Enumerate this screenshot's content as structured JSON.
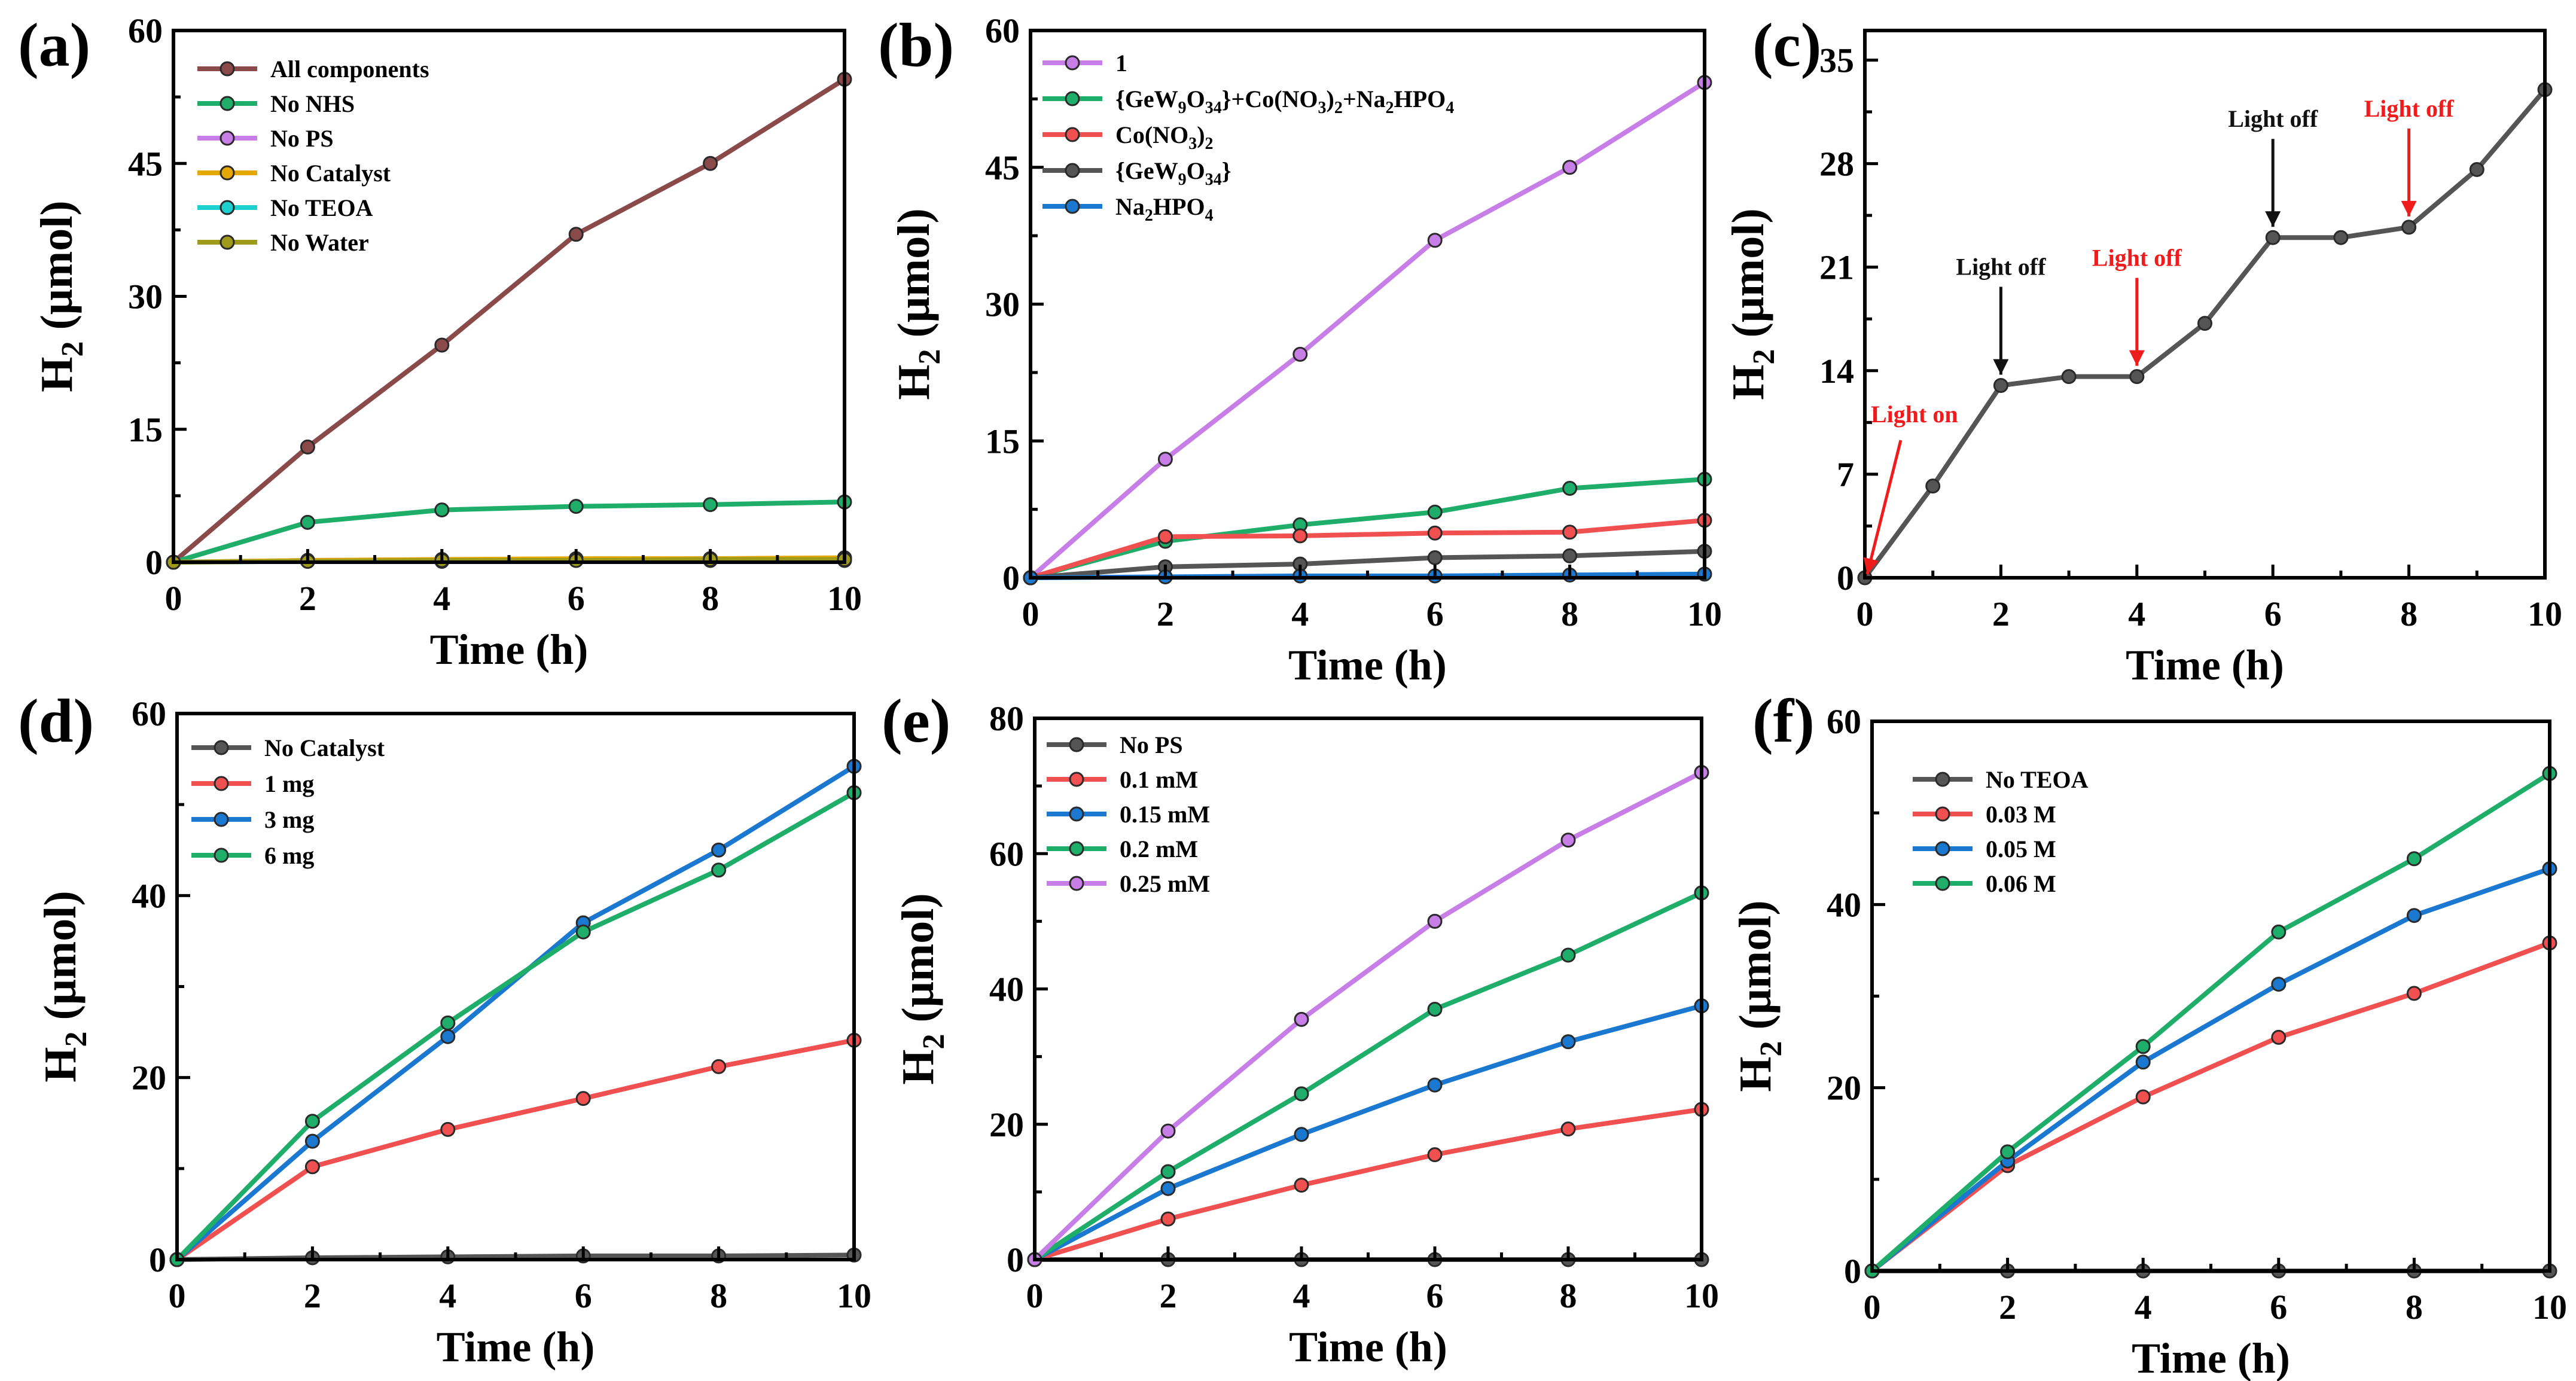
{
  "chart_data": [
    {
      "panel": "(a)",
      "type": "line",
      "xlabel": "Time (h)",
      "ylabel_main": "H",
      "ylabel_sub": "2",
      "ylabel_unit": " (μmol)",
      "xlim": [
        0,
        10
      ],
      "ylim": [
        0,
        60
      ],
      "xticks": [
        0,
        2,
        4,
        6,
        8,
        10
      ],
      "yticks": [
        0,
        15,
        30,
        45,
        60
      ],
      "legend_position": "top-left",
      "series": [
        {
          "name": "All components",
          "color": "#8b4a4a",
          "x": [
            0,
            2,
            4,
            6,
            8,
            10
          ],
          "y": [
            0,
            13,
            24.5,
            37,
            45,
            54.5
          ]
        },
        {
          "name": "No NHS",
          "color": "#1fae6a",
          "x": [
            0,
            2,
            4,
            6,
            8,
            10
          ],
          "y": [
            0,
            4.5,
            5.9,
            6.3,
            6.5,
            6.8
          ]
        },
        {
          "name": "No PS",
          "color": "#c77ee6",
          "x": [
            0,
            2,
            4,
            6,
            8,
            10
          ],
          "y": [
            0,
            0.2,
            0.3,
            0.3,
            0.4,
            0.4
          ]
        },
        {
          "name": "No Catalyst",
          "color": "#e5a800",
          "x": [
            0,
            2,
            4,
            6,
            8,
            10
          ],
          "y": [
            0,
            0.2,
            0.3,
            0.4,
            0.4,
            0.5
          ]
        },
        {
          "name": "No TEOA",
          "color": "#1fd0d0",
          "x": [
            0,
            2,
            4,
            6,
            8,
            10
          ],
          "y": [
            0,
            0.1,
            0.1,
            0.2,
            0.2,
            0.2
          ]
        },
        {
          "name": "No Water",
          "color": "#a09a1a",
          "x": [
            0,
            2,
            4,
            6,
            8,
            10
          ],
          "y": [
            0,
            0.1,
            0.2,
            0.2,
            0.3,
            0.3
          ]
        }
      ]
    },
    {
      "panel": "(b)",
      "type": "line",
      "xlabel": "Time (h)",
      "ylabel_main": "H",
      "ylabel_sub": "2",
      "ylabel_unit": " (μmol)",
      "xlim": [
        0,
        10
      ],
      "ylim": [
        0,
        60
      ],
      "xticks": [
        0,
        2,
        4,
        6,
        8,
        10
      ],
      "yticks": [
        0,
        15,
        30,
        45,
        60
      ],
      "legend_position": "top-left",
      "series": [
        {
          "name": "1",
          "legend_parts": [
            [
              "1",
              ""
            ]
          ],
          "color": "#c77ee6",
          "x": [
            0,
            2,
            4,
            6,
            8,
            10
          ],
          "y": [
            0,
            13,
            24.5,
            37,
            45,
            54.3
          ]
        },
        {
          "name": "{GeW9O34}+Co(NO3)2+Na2HPO4",
          "legend_parts": [
            [
              "{GeW",
              ""
            ],
            [
              "9",
              "sub"
            ],
            [
              "O",
              ""
            ],
            [
              "34",
              "sub"
            ],
            [
              "}+Co(NO",
              ""
            ],
            [
              "3",
              "sub"
            ],
            [
              ")",
              ""
            ],
            [
              "2",
              "sub"
            ],
            [
              "+Na",
              ""
            ],
            [
              "2",
              "sub"
            ],
            [
              "HPO",
              ""
            ],
            [
              "4",
              "sub"
            ]
          ],
          "color": "#1fae6a",
          "x": [
            0,
            2,
            4,
            6,
            8,
            10
          ],
          "y": [
            0,
            4,
            5.8,
            7.2,
            9.8,
            10.8
          ]
        },
        {
          "name": "Co(NO3)2",
          "legend_parts": [
            [
              "Co(NO",
              ""
            ],
            [
              "3",
              "sub"
            ],
            [
              ")",
              ""
            ],
            [
              "2",
              "sub"
            ]
          ],
          "color": "#f05050",
          "x": [
            0,
            2,
            4,
            6,
            8,
            10
          ],
          "y": [
            0,
            4.5,
            4.6,
            4.9,
            5,
            6.3
          ]
        },
        {
          "name": "{GeW9O34}",
          "legend_parts": [
            [
              "{GeW",
              ""
            ],
            [
              "9",
              "sub"
            ],
            [
              "O",
              ""
            ],
            [
              "34",
              "sub"
            ],
            [
              "}",
              ""
            ]
          ],
          "color": "#555555",
          "x": [
            0,
            2,
            4,
            6,
            8,
            10
          ],
          "y": [
            0,
            1.2,
            1.5,
            2.2,
            2.4,
            2.9
          ]
        },
        {
          "name": "Na2HPO4",
          "legend_parts": [
            [
              "Na",
              ""
            ],
            [
              "2",
              "sub"
            ],
            [
              "HPO",
              ""
            ],
            [
              "4",
              "sub"
            ]
          ],
          "color": "#1a78d0",
          "x": [
            0,
            2,
            4,
            6,
            8,
            10
          ],
          "y": [
            0,
            0.1,
            0.2,
            0.2,
            0.3,
            0.4
          ]
        }
      ]
    },
    {
      "panel": "(c)",
      "type": "line",
      "xlabel": "Time (h)",
      "ylabel_main": "H",
      "ylabel_sub": "2",
      "ylabel_unit": " (μmol)",
      "xlim": [
        0,
        10
      ],
      "ylim": [
        0,
        37
      ],
      "xticks": [
        0,
        2,
        4,
        6,
        8,
        10
      ],
      "yticks": [
        0,
        7,
        14,
        21,
        28,
        35
      ],
      "series": [
        {
          "name": "H2",
          "color": "#555555",
          "x": [
            0,
            1,
            2,
            3,
            4,
            5,
            6,
            7,
            8,
            9,
            10
          ],
          "y": [
            0,
            6.2,
            13,
            13.6,
            13.6,
            17.2,
            23,
            23,
            23.7,
            27.6,
            33
          ]
        }
      ],
      "annotations": [
        {
          "text": "Light on",
          "color": "#ee1c1c",
          "x": 0,
          "y": 0
        },
        {
          "text": "Light off",
          "color": "#111111",
          "x": 2,
          "y": 13
        },
        {
          "text": "Light off",
          "color": "#ee1c1c",
          "x": 4,
          "y": 13.6
        },
        {
          "text": "Light off",
          "color": "#111111",
          "x": 6,
          "y": 23
        },
        {
          "text": "Light off",
          "color": "#ee1c1c",
          "x": 8,
          "y": 23.7
        }
      ]
    },
    {
      "panel": "(d)",
      "type": "line",
      "xlabel": "Time (h)",
      "ylabel_main": "H",
      "ylabel_sub": "2",
      "ylabel_unit": " (μmol)",
      "xlim": [
        0,
        10
      ],
      "ylim": [
        0,
        60
      ],
      "xticks": [
        0,
        2,
        4,
        6,
        8,
        10
      ],
      "yticks": [
        0,
        20,
        40,
        60
      ],
      "legend_position": "top-left",
      "series": [
        {
          "name": "No Catalyst",
          "color": "#555555",
          "x": [
            0,
            2,
            4,
            6,
            8,
            10
          ],
          "y": [
            0,
            0.2,
            0.3,
            0.4,
            0.4,
            0.5
          ]
        },
        {
          "name": "1 mg",
          "color": "#f05050",
          "x": [
            0,
            2,
            4,
            6,
            8,
            10
          ],
          "y": [
            0,
            10.2,
            14.3,
            17.7,
            21.2,
            24.1
          ]
        },
        {
          "name": "3 mg",
          "color": "#1a78d0",
          "x": [
            0,
            2,
            4,
            6,
            8,
            10
          ],
          "y": [
            0,
            13,
            24.5,
            37,
            45,
            54.2
          ]
        },
        {
          "name": "6 mg",
          "color": "#1fae6a",
          "x": [
            0,
            2,
            4,
            6,
            8,
            10
          ],
          "y": [
            0,
            15.2,
            26,
            36,
            42.8,
            51.3
          ]
        }
      ]
    },
    {
      "panel": "(e)",
      "type": "line",
      "xlabel": "Time (h)",
      "ylabel_main": "H",
      "ylabel_sub": "2",
      "ylabel_unit": " (μmol)",
      "xlim": [
        0,
        10
      ],
      "ylim": [
        0,
        80
      ],
      "xticks": [
        0,
        2,
        4,
        6,
        8,
        10
      ],
      "yticks": [
        0,
        20,
        40,
        60,
        80
      ],
      "legend_position": "top-left",
      "series": [
        {
          "name": "No PS",
          "color": "#555555",
          "x": [
            0,
            2,
            4,
            6,
            8,
            10
          ],
          "y": [
            0,
            0,
            0,
            0,
            0,
            0
          ]
        },
        {
          "name": "0.1 mM",
          "color": "#f05050",
          "x": [
            0,
            2,
            4,
            6,
            8,
            10
          ],
          "y": [
            0,
            6,
            11,
            15.5,
            19.3,
            22.2
          ]
        },
        {
          "name": "0.15 mM",
          "color": "#1a78d0",
          "x": [
            0,
            2,
            4,
            6,
            8,
            10
          ],
          "y": [
            0,
            10.5,
            18.5,
            25.8,
            32.2,
            37.5
          ]
        },
        {
          "name": "0.2 mM",
          "color": "#1fae6a",
          "x": [
            0,
            2,
            4,
            6,
            8,
            10
          ],
          "y": [
            0,
            13,
            24.5,
            37,
            45,
            54.2
          ]
        },
        {
          "name": "0.25 mM",
          "color": "#c77ee6",
          "x": [
            0,
            2,
            4,
            6,
            8,
            10
          ],
          "y": [
            0,
            19,
            35.5,
            50,
            62,
            72
          ]
        }
      ]
    },
    {
      "panel": "(f)",
      "type": "line",
      "xlabel": "Time (h)",
      "ylabel_main": "H",
      "ylabel_sub": "2",
      "ylabel_unit": " (μmol)",
      "xlim": [
        0,
        10
      ],
      "ylim": [
        0,
        60
      ],
      "xticks": [
        0,
        2,
        4,
        6,
        8,
        10
      ],
      "yticks": [
        0,
        20,
        40,
        60
      ],
      "legend_position": "top-left",
      "series": [
        {
          "name": "No TEOA",
          "color": "#555555",
          "x": [
            0,
            2,
            4,
            6,
            8,
            10
          ],
          "y": [
            0,
            0,
            0,
            0,
            0,
            0
          ]
        },
        {
          "name": "0.03 M",
          "color": "#f05050",
          "x": [
            0,
            2,
            4,
            6,
            8,
            10
          ],
          "y": [
            0,
            11.5,
            19,
            25.5,
            30.3,
            35.8
          ]
        },
        {
          "name": "0.05 M",
          "color": "#1a78d0",
          "x": [
            0,
            2,
            4,
            6,
            8,
            10
          ],
          "y": [
            0,
            12,
            22.8,
            31.3,
            38.8,
            43.9
          ]
        },
        {
          "name": "0.06 M",
          "color": "#1fae6a",
          "x": [
            0,
            2,
            4,
            6,
            8,
            10
          ],
          "y": [
            0,
            13,
            24.5,
            37,
            45,
            54.3
          ]
        }
      ]
    }
  ]
}
